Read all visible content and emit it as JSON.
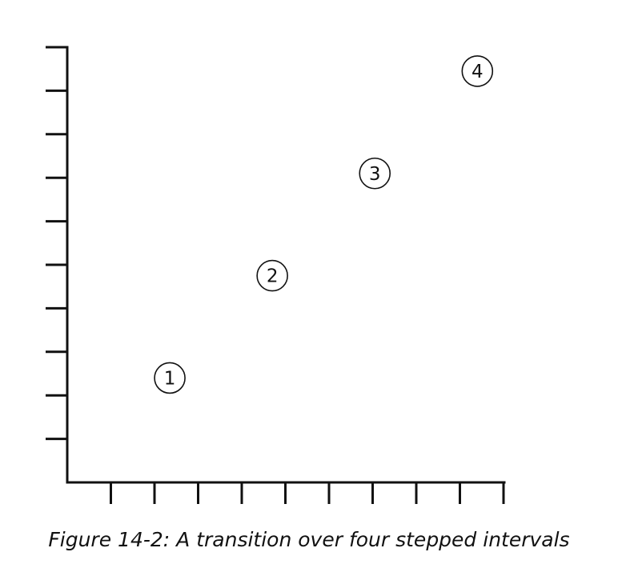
{
  "caption": "Figure 14-2: A transition over four stepped intervals",
  "chart_data": {
    "type": "scatter",
    "title": "",
    "xlabel": "",
    "ylabel": "",
    "xlim": [
      0,
      10
    ],
    "ylim": [
      0,
      10
    ],
    "grid": false,
    "x_ticks": [
      1,
      2,
      3,
      4,
      5,
      6,
      7,
      8,
      9,
      10
    ],
    "y_ticks": [
      1,
      2,
      3,
      4,
      5,
      6,
      7,
      8,
      9,
      10
    ],
    "points": [
      {
        "x": 2.35,
        "y": 2.4,
        "label": "1"
      },
      {
        "x": 4.7,
        "y": 4.75,
        "label": "2"
      },
      {
        "x": 7.05,
        "y": 7.1,
        "label": "3"
      },
      {
        "x": 9.4,
        "y": 9.45,
        "label": "4"
      }
    ],
    "marker": "circled-number",
    "color": "#111111"
  }
}
